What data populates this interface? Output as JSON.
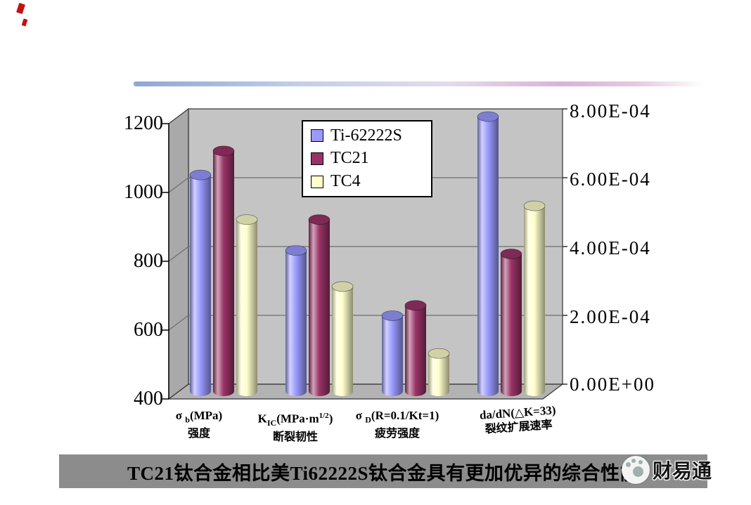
{
  "banner": {
    "text": "TC21钛合金相比美Ti62222S钛合金具有更加优异的综合性能",
    "bg": "#8c8c8c",
    "watermark": "财易通"
  },
  "chart_data": {
    "type": "bar",
    "style": "3d-cylinder",
    "plot_bg": "#c4c4c4",
    "grid": true,
    "legend_position": "top-center",
    "axis_per_category": [
      "left",
      "left",
      "left",
      "right"
    ],
    "categories": [
      {
        "label_plain": "σb(MPa)",
        "cn": "强度",
        "formula": [
          {
            "t": "σ ",
            "s": "n"
          },
          {
            "t": "b",
            "s": "sub"
          },
          {
            "t": "(MPa)",
            "s": "n"
          }
        ]
      },
      {
        "label_plain": "KIC(MPa·m1/2)",
        "cn": "断裂韧性",
        "formula": [
          {
            "t": "K",
            "s": "n"
          },
          {
            "t": "IC",
            "s": "sub"
          },
          {
            "t": "(MPa·m",
            "s": "n"
          },
          {
            "t": "1/2",
            "s": "sup"
          },
          {
            "t": ")",
            "s": "n"
          }
        ]
      },
      {
        "label_plain": "σD(R=0.1/Kt=1)",
        "cn": "疲劳强度",
        "formula": [
          {
            "t": "σ ",
            "s": "n"
          },
          {
            "t": "D",
            "s": "sub"
          },
          {
            "t": "(R=0.1/Kt=1)",
            "s": "n"
          }
        ]
      },
      {
        "label_plain": "da/dN(△K=33)",
        "cn": "裂纹扩展速率",
        "formula": [
          {
            "t": "da/dN(△K=33)",
            "s": "n"
          }
        ]
      }
    ],
    "series": [
      {
        "name": "Ti-62222S",
        "color": "#9999ff",
        "values": [
          1030,
          810,
          620,
          0.0008
        ]
      },
      {
        "name": "TC21",
        "color": "#993366",
        "values": [
          1100,
          900,
          650,
          0.0004
        ]
      },
      {
        "name": "TC4",
        "color": "#ffffcc",
        "values": [
          900,
          705,
          510,
          0.00054
        ]
      }
    ],
    "left_axis": {
      "min": 400,
      "max": 1200,
      "ticks": [
        "1200",
        "1000",
        "800",
        "600",
        "400"
      ]
    },
    "right_axis": {
      "min": 0,
      "max": 0.0008,
      "ticks": [
        "8.00E-04",
        "6.00E-04",
        "4.00E-04",
        "2.00E-04",
        "0.00E+00"
      ]
    }
  }
}
